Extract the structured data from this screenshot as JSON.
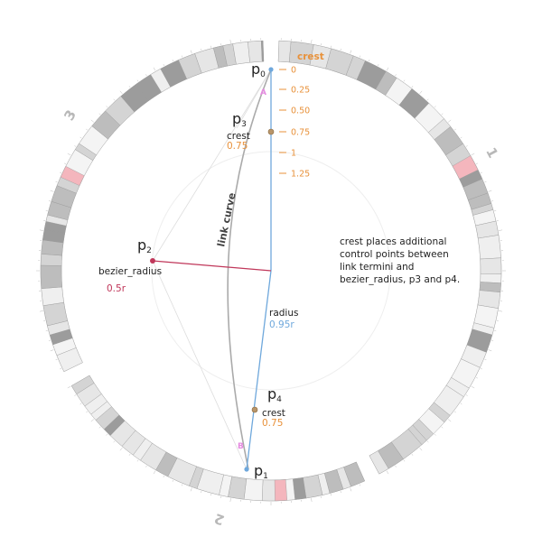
{
  "points": {
    "p0": {
      "main": "p",
      "sub": "0"
    },
    "p1": {
      "main": "p",
      "sub": "1"
    },
    "p2": {
      "main": "p",
      "sub": "2"
    },
    "p3": {
      "main": "p",
      "sub": "3"
    },
    "p4": {
      "main": "p",
      "sub": "4"
    }
  },
  "labels": {
    "crest_header": "crest",
    "p3_crest": "crest",
    "p3_crest_value": "0.75",
    "p4_crest": "crest",
    "p4_crest_value": "0.75",
    "bezier_radius": "bezier_radius",
    "bezier_radius_value": "0.5r",
    "radius": "radius",
    "radius_value": "0.95r",
    "link_curve": "link curve",
    "marker_a": "A",
    "marker_b": "B"
  },
  "crest_scale": [
    "0",
    "0.25",
    "0.50",
    "0.75",
    "1",
    "1.25"
  ],
  "chromosomes": [
    "1",
    "2",
    "3"
  ],
  "note_lines": [
    "crest places additional",
    "control points between",
    "link termini and",
    "bezier_radius, p3 and p4."
  ],
  "colors": {
    "crest": "#e8913a",
    "radius": "#6fa8dc",
    "bezier": "#c0375a",
    "marker": "#e58ae0",
    "curve": "#aaaaaa",
    "highlight_band": "#f4b6bd"
  }
}
